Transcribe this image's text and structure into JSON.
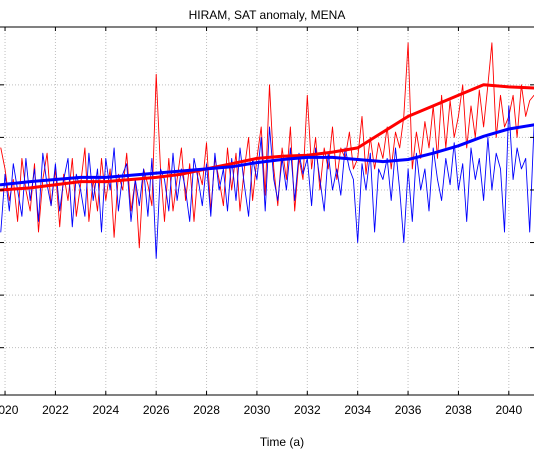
{
  "chart_data": {
    "type": "line",
    "title": "HIRAM, SAT anomaly, MENA",
    "xlabel": "Time (a)",
    "ylabel": "",
    "xlim": [
      2019.8,
      2041.0
    ],
    "ylim": [
      -1.95,
      1.55
    ],
    "grid": true,
    "xticks": [
      2020,
      2022,
      2024,
      2026,
      2028,
      2030,
      2032,
      2034,
      2036,
      2038,
      2040
    ],
    "xtick_labels": [
      "2020",
      "2022",
      "2024",
      "2026",
      "2028",
      "2030",
      "2032",
      "2034",
      "2036",
      "2038",
      "2040"
    ],
    "yticks": [
      -1.5,
      -1.0,
      -0.5,
      0.0,
      0.5,
      1.0
    ],
    "colors": {
      "red": "#ff0000",
      "blue": "#0000ff",
      "grid": "#bfbfbf",
      "axes": "#000000"
    },
    "series": [
      {
        "color": "#ff0000",
        "style": "thin",
        "x": [
          2019.83,
          2020.0,
          2020.17,
          2020.33,
          2020.5,
          2020.67,
          2020.83,
          2021.0,
          2021.17,
          2021.33,
          2021.5,
          2021.67,
          2021.83,
          2022.0,
          2022.17,
          2022.33,
          2022.5,
          2022.67,
          2022.83,
          2023.0,
          2023.17,
          2023.33,
          2023.5,
          2023.67,
          2023.83,
          2024.0,
          2024.17,
          2024.33,
          2024.5,
          2024.67,
          2024.83,
          2025.0,
          2025.17,
          2025.33,
          2025.5,
          2025.67,
          2025.83,
          2026.0,
          2026.17,
          2026.33,
          2026.5,
          2026.67,
          2026.83,
          2027.0,
          2027.17,
          2027.33,
          2027.5,
          2027.67,
          2027.83,
          2028.0,
          2028.17,
          2028.33,
          2028.5,
          2028.67,
          2028.83,
          2029.0,
          2029.17,
          2029.33,
          2029.5,
          2029.67,
          2029.83,
          2030.0,
          2030.17,
          2030.33,
          2030.5,
          2030.67,
          2030.83,
          2031.0,
          2031.17,
          2031.33,
          2031.5,
          2031.67,
          2031.83,
          2032.0,
          2032.17,
          2032.33,
          2032.5,
          2032.67,
          2032.83,
          2033.0,
          2033.17,
          2033.33,
          2033.5,
          2033.67,
          2033.83,
          2034.0,
          2034.17,
          2034.33,
          2034.5,
          2034.67,
          2034.83,
          2035.0,
          2035.17,
          2035.33,
          2035.5,
          2035.67,
          2035.83,
          2036.0,
          2036.17,
          2036.33,
          2036.5,
          2036.67,
          2036.83,
          2037.0,
          2037.17,
          2037.33,
          2037.5,
          2037.67,
          2037.83,
          2038.0,
          2038.17,
          2038.33,
          2038.5,
          2038.67,
          2038.83,
          2039.0,
          2039.17,
          2039.33,
          2039.5,
          2039.67,
          2039.83,
          2040.0,
          2040.17,
          2040.33,
          2040.5,
          2040.67,
          2040.83,
          2041.0
        ],
        "y": [
          0.4,
          0.2,
          -0.1,
          0.1,
          -0.3,
          0.3,
          0.0,
          -0.2,
          0.25,
          -0.4,
          0.1,
          0.35,
          -0.15,
          0.2,
          -0.35,
          0.15,
          -0.1,
          0.3,
          -0.25,
          0.05,
          0.4,
          -0.3,
          0.1,
          -0.2,
          0.3,
          -0.1,
          0.2,
          -0.45,
          0.15,
          0.0,
          0.35,
          -0.2,
          0.1,
          -0.55,
          0.2,
          0.05,
          -0.15,
          1.1,
          0.2,
          -0.3,
          0.3,
          -0.2,
          0.1,
          0.4,
          -0.1,
          0.25,
          -0.3,
          0.2,
          0.05,
          0.45,
          -0.2,
          0.3,
          0.1,
          -0.15,
          0.4,
          0.0,
          0.35,
          -0.2,
          0.2,
          0.5,
          -0.1,
          0.3,
          0.6,
          -0.05,
          1.0,
          0.2,
          -0.15,
          0.4,
          0.1,
          0.6,
          -0.2,
          0.3,
          0.1,
          0.9,
          0.2,
          0.5,
          0.0,
          0.4,
          0.2,
          0.6,
          0.1,
          0.4,
          0.3,
          0.55,
          0.2,
          0.3,
          0.7,
          0.15,
          0.5,
          0.2,
          0.45,
          0.3,
          0.6,
          0.2,
          0.55,
          0.4,
          0.7,
          1.4,
          0.2,
          0.55,
          0.3,
          0.65,
          0.4,
          0.8,
          0.3,
          0.9,
          0.4,
          0.85,
          0.5,
          0.7,
          1.0,
          0.4,
          0.8,
          0.5,
          0.95,
          0.6,
          1.0,
          1.4,
          0.5,
          0.9,
          0.6,
          0.7,
          0.9,
          0.5,
          1.0,
          0.7,
          0.85,
          0.9
        ]
      },
      {
        "color": "#0000ff",
        "style": "thin",
        "x": [
          2019.83,
          2020.0,
          2020.17,
          2020.33,
          2020.5,
          2020.67,
          2020.83,
          2021.0,
          2021.17,
          2021.33,
          2021.5,
          2021.67,
          2021.83,
          2022.0,
          2022.17,
          2022.33,
          2022.5,
          2022.67,
          2022.83,
          2023.0,
          2023.17,
          2023.33,
          2023.5,
          2023.67,
          2023.83,
          2024.0,
          2024.17,
          2024.33,
          2024.5,
          2024.67,
          2024.83,
          2025.0,
          2025.17,
          2025.33,
          2025.5,
          2025.67,
          2025.83,
          2026.0,
          2026.17,
          2026.33,
          2026.5,
          2026.67,
          2026.83,
          2027.0,
          2027.17,
          2027.33,
          2027.5,
          2027.67,
          2027.83,
          2028.0,
          2028.17,
          2028.33,
          2028.5,
          2028.67,
          2028.83,
          2029.0,
          2029.17,
          2029.33,
          2029.5,
          2029.67,
          2029.83,
          2030.0,
          2030.17,
          2030.33,
          2030.5,
          2030.67,
          2030.83,
          2031.0,
          2031.17,
          2031.33,
          2031.5,
          2031.67,
          2031.83,
          2032.0,
          2032.17,
          2032.33,
          2032.5,
          2032.67,
          2032.83,
          2033.0,
          2033.17,
          2033.33,
          2033.5,
          2033.67,
          2033.83,
          2034.0,
          2034.17,
          2034.33,
          2034.5,
          2034.67,
          2034.83,
          2035.0,
          2035.17,
          2035.33,
          2035.5,
          2035.67,
          2035.83,
          2036.0,
          2036.17,
          2036.33,
          2036.5,
          2036.67,
          2036.83,
          2037.0,
          2037.17,
          2037.33,
          2037.5,
          2037.67,
          2037.83,
          2038.0,
          2038.17,
          2038.33,
          2038.5,
          2038.67,
          2038.83,
          2039.0,
          2039.17,
          2039.33,
          2039.5,
          2039.67,
          2039.83,
          2040.0,
          2040.17,
          2040.33,
          2040.5,
          2040.67,
          2040.83,
          2041.0
        ],
        "y": [
          -0.4,
          0.15,
          -0.2,
          0.25,
          0.0,
          -0.25,
          0.3,
          -0.1,
          0.2,
          -0.3,
          0.35,
          0.05,
          -0.15,
          0.25,
          -0.2,
          0.1,
          0.3,
          -0.35,
          0.15,
          0.0,
          -0.25,
          0.35,
          -0.1,
          0.2,
          -0.4,
          0.3,
          0.0,
          0.4,
          -0.2,
          0.15,
          0.25,
          -0.3,
          0.1,
          -0.15,
          0.2,
          -0.25,
          0.3,
          -0.65,
          0.2,
          0.1,
          -0.2,
          0.35,
          -0.1,
          0.2,
          0.0,
          -0.3,
          0.3,
          0.1,
          -0.15,
          0.25,
          -0.25,
          0.35,
          0.0,
          0.2,
          -0.2,
          0.3,
          -0.1,
          0.4,
          0.05,
          -0.25,
          0.3,
          0.1,
          0.5,
          -0.2,
          0.6,
          0.1,
          -0.1,
          0.3,
          0.0,
          0.4,
          -0.1,
          0.35,
          0.15,
          0.3,
          -0.15,
          0.4,
          0.1,
          -0.2,
          0.35,
          0.0,
          0.2,
          -0.05,
          0.4,
          0.2,
          0.1,
          -0.5,
          0.25,
          0.0,
          0.35,
          -0.4,
          0.2,
          0.1,
          0.3,
          -0.1,
          0.4,
          0.0,
          -0.5,
          0.2,
          -0.3,
          0.35,
          0.0,
          0.2,
          -0.2,
          0.4,
          0.1,
          -0.1,
          0.3,
          0.05,
          0.45,
          0.0,
          0.25,
          -0.3,
          0.4,
          0.1,
          0.3,
          -0.1,
          0.5,
          0.0,
          0.35,
          0.2,
          -0.4,
          0.8,
          0.1,
          0.4,
          0.2,
          0.3,
          -0.4,
          0.6
        ]
      },
      {
        "color": "#ff0000",
        "style": "thick",
        "x": [
          2019.83,
          2021.0,
          2022.0,
          2023.0,
          2024.0,
          2025.0,
          2026.0,
          2027.0,
          2028.0,
          2029.0,
          2030.0,
          2031.0,
          2032.0,
          2033.0,
          2034.0,
          2035.0,
          2036.0,
          2037.0,
          2038.0,
          2039.0,
          2040.0,
          2041.0
        ],
        "y": [
          0.0,
          0.02,
          0.05,
          0.08,
          0.08,
          0.1,
          0.12,
          0.15,
          0.2,
          0.25,
          0.3,
          0.32,
          0.33,
          0.36,
          0.4,
          0.55,
          0.7,
          0.8,
          0.9,
          1.0,
          0.98,
          0.97
        ]
      },
      {
        "color": "#0000ff",
        "style": "thick",
        "x": [
          2019.83,
          2021.0,
          2022.0,
          2023.0,
          2024.0,
          2025.0,
          2026.0,
          2027.0,
          2028.0,
          2029.0,
          2030.0,
          2031.0,
          2032.0,
          2033.0,
          2034.0,
          2035.0,
          2036.0,
          2037.0,
          2038.0,
          2039.0,
          2040.0,
          2041.0
        ],
        "y": [
          0.05,
          0.08,
          0.1,
          0.12,
          0.12,
          0.14,
          0.16,
          0.18,
          0.2,
          0.22,
          0.26,
          0.29,
          0.31,
          0.31,
          0.29,
          0.27,
          0.29,
          0.35,
          0.42,
          0.51,
          0.58,
          0.62
        ]
      }
    ]
  }
}
